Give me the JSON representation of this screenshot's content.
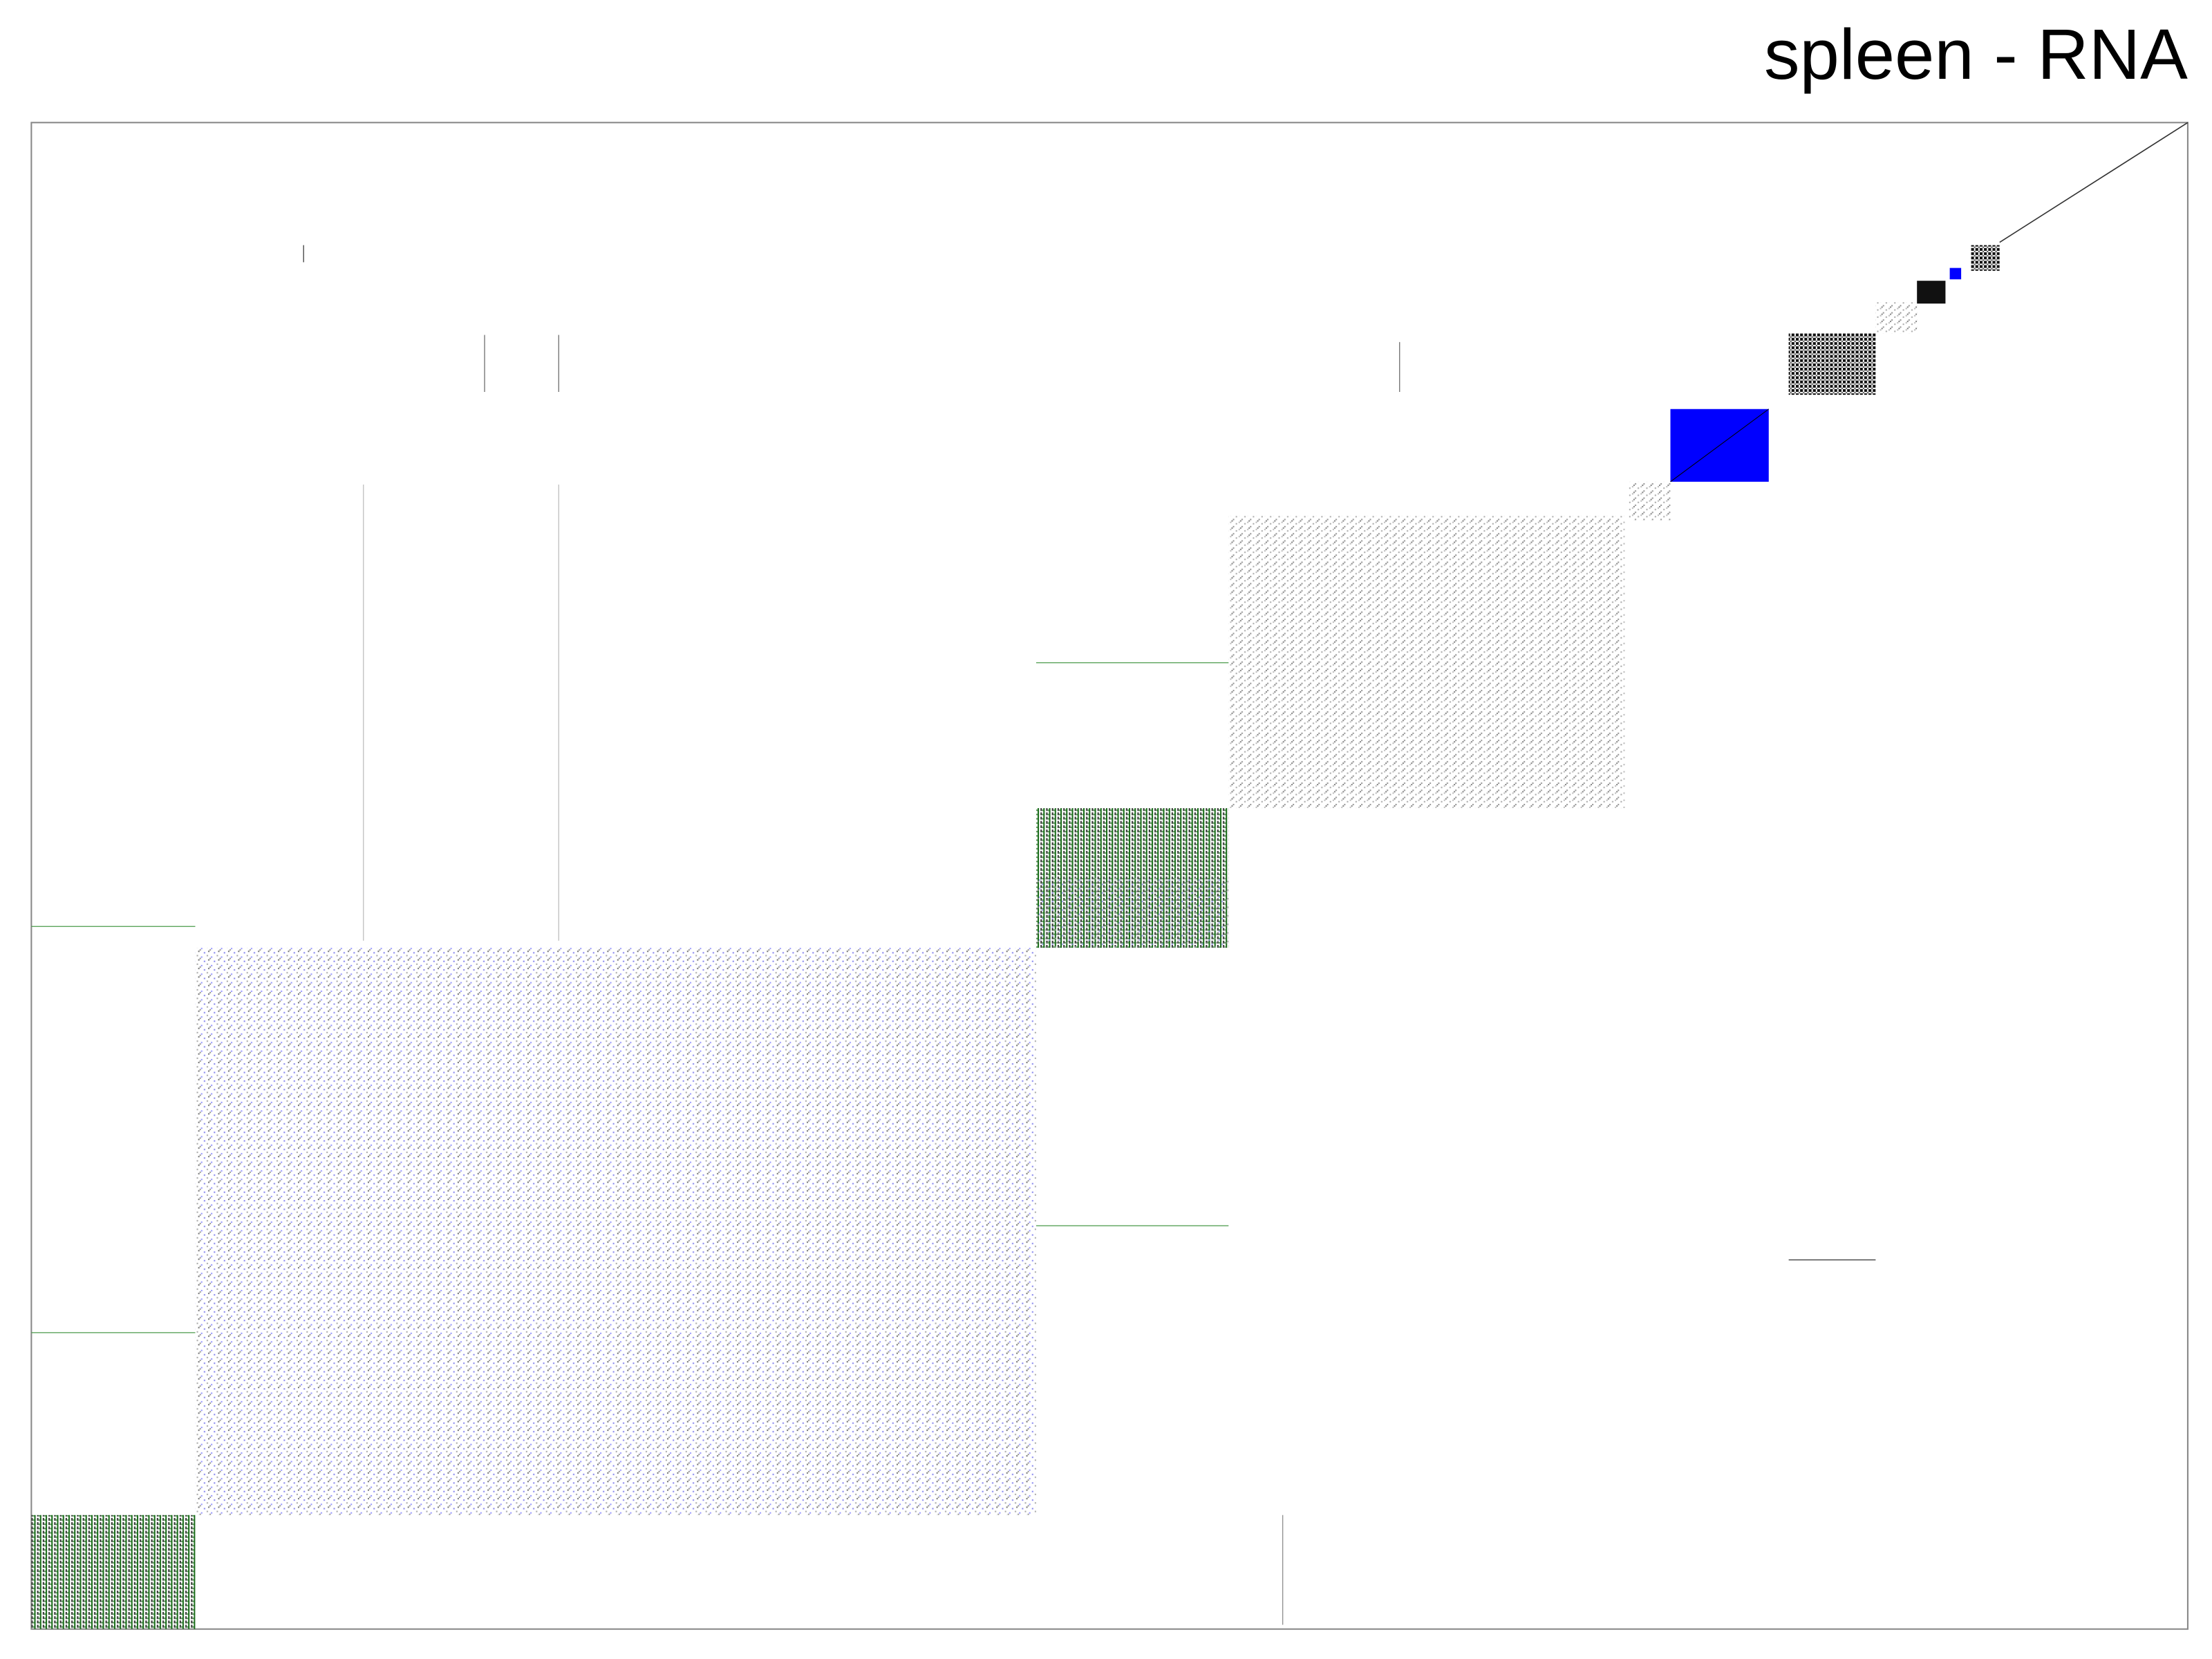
{
  "title": "spleen - RNA"
}
